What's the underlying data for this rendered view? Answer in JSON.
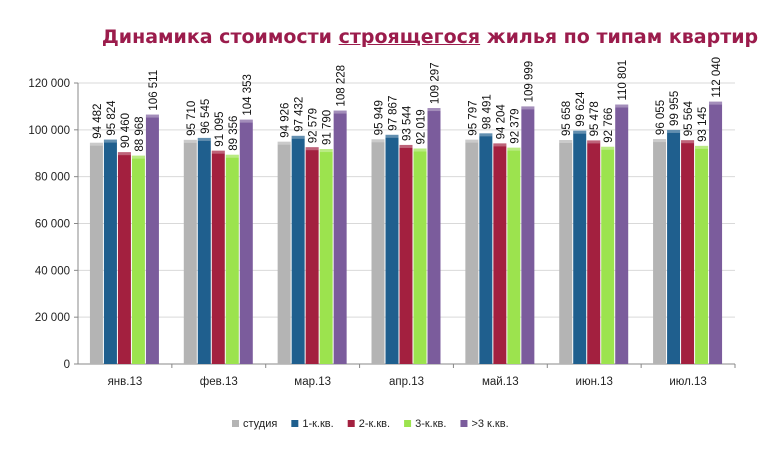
{
  "chart_data": {
    "type": "bar",
    "title_parts": [
      "Динамика стоимости ",
      "строящегося",
      " жилья по типам квартир"
    ],
    "title": "Динамика стоимости строящегося жилья по типам квартир",
    "xlabel": "",
    "ylabel": "",
    "ylim": [
      0,
      120000
    ],
    "yticks": [
      0,
      20000,
      40000,
      60000,
      80000,
      100000,
      120000
    ],
    "ytick_labels": [
      "0",
      "20 000",
      "40 000",
      "60 000",
      "80 000",
      "100 000",
      "120 000"
    ],
    "grid": true,
    "legend_position": "bottom",
    "categories": [
      "янв.13",
      "фев.13",
      "мар.13",
      "апр.13",
      "май.13",
      "июн.13",
      "июл.13"
    ],
    "series": [
      {
        "name": "студия",
        "color": "#b4b4b4",
        "values": [
          94482,
          95710,
          94926,
          95949,
          95797,
          95658,
          96055
        ],
        "labels": [
          "94 482",
          "95 710",
          "94 926",
          "95 949",
          "95 797",
          "95 658",
          "96 055"
        ]
      },
      {
        "name": "1-к.кв.",
        "color": "#1f5f8e",
        "values": [
          95824,
          96545,
          97432,
          97867,
          98491,
          99624,
          99955
        ],
        "labels": [
          "95 824",
          "96 545",
          "97 432",
          "97 867",
          "98 491",
          "99 624",
          "99 955"
        ]
      },
      {
        "name": "2-к.кв.",
        "color": "#a3203f",
        "values": [
          90460,
          91095,
          92579,
          93544,
          94204,
          95478,
          95564
        ],
        "labels": [
          "90 460",
          "91 095",
          "92 579",
          "93 544",
          "94 204",
          "95 478",
          "95 564"
        ]
      },
      {
        "name": "3-к.кв.",
        "color": "#9ce34e",
        "values": [
          88968,
          89356,
          91790,
          92019,
          92379,
          92766,
          93145
        ],
        "labels": [
          "88 968",
          "89 356",
          "91 790",
          "92 019",
          "92 379",
          "92 766",
          "93 145"
        ]
      },
      {
        "name": ">3 к.кв.",
        "color": "#7b5c9c",
        "values": [
          106511,
          104353,
          108228,
          109297,
          109999,
          110801,
          112040
        ],
        "labels": [
          "106 511",
          "104 353",
          "108 228",
          "109 297",
          "109 999",
          "110 801",
          "112 040"
        ]
      }
    ]
  }
}
